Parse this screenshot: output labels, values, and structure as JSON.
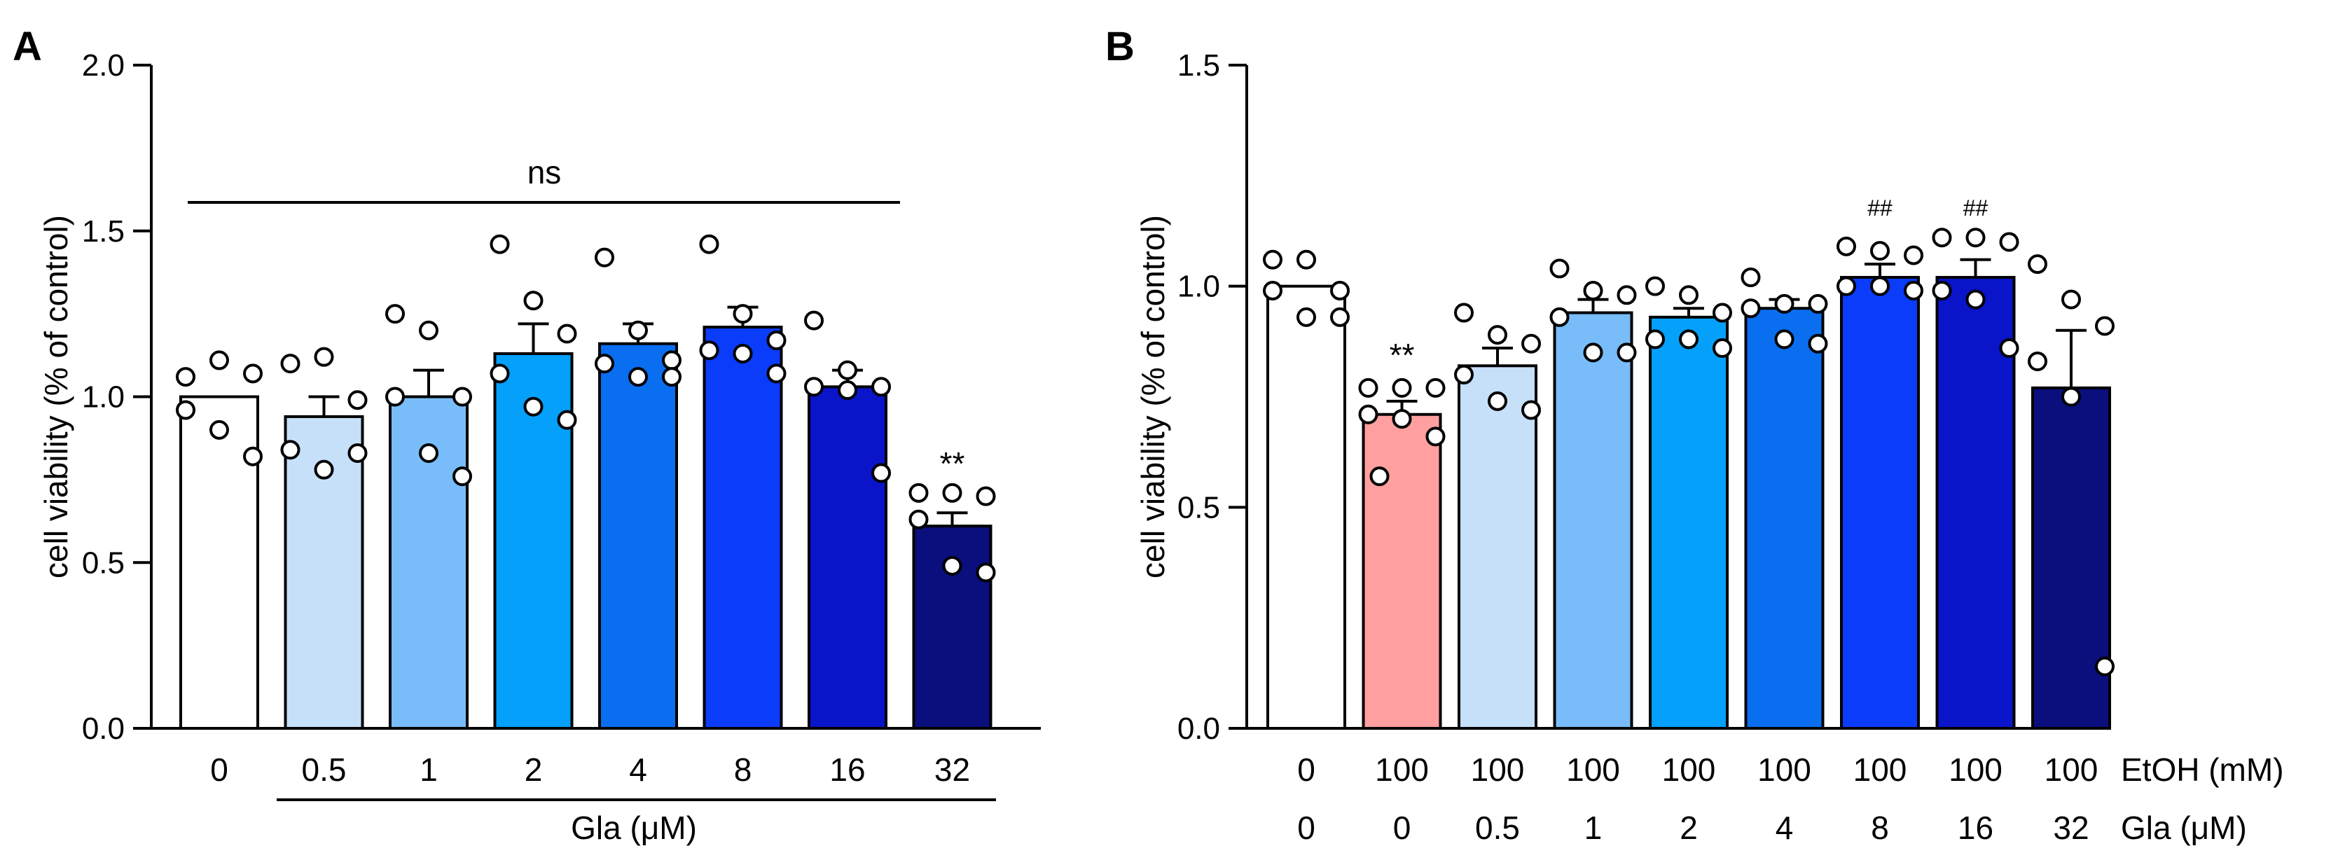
{
  "chart_data": [
    {
      "type": "bar",
      "panel": "A",
      "title": "",
      "ylabel": "cell viability (% of control)",
      "xlabel": "Gla (μM)",
      "ylim": [
        0,
        2.0
      ],
      "yticks": [
        0.0,
        0.5,
        1.0,
        1.5,
        2.0
      ],
      "ytick_labels": [
        "0.0",
        "0.5",
        "1.0",
        "1.5",
        "2.0"
      ],
      "categories": [
        "0",
        "0.5",
        "1",
        "2",
        "4",
        "8",
        "16",
        "32"
      ],
      "values": [
        1.0,
        0.94,
        1.0,
        1.13,
        1.16,
        1.21,
        1.03,
        0.61
      ],
      "errors": [
        0.0,
        0.06,
        0.08,
        0.09,
        0.06,
        0.06,
        0.05,
        0.04
      ],
      "colors": [
        "#ffffff",
        "#c6e0fa",
        "#78bdfa",
        "#05a0fa",
        "#0a6ef0",
        "#0a3cfa",
        "#0a14c8",
        "#0a0f7d"
      ],
      "points": [
        [
          1.06,
          1.11,
          1.07,
          0.96,
          0.9,
          0.82
        ],
        [
          1.1,
          1.12,
          0.99,
          0.84,
          0.78,
          0.83
        ],
        [
          1.25,
          1.2,
          1.0,
          1.0,
          0.83,
          0.76
        ],
        [
          1.46,
          1.29,
          1.19,
          1.07,
          0.97,
          0.93
        ],
        [
          1.42,
          1.2,
          1.11,
          1.1,
          1.06,
          1.06
        ],
        [
          1.46,
          1.25,
          1.17,
          1.14,
          1.13,
          1.07
        ],
        [
          1.23,
          1.08,
          1.03,
          1.03,
          1.02,
          0.77
        ],
        [
          0.71,
          0.71,
          0.7,
          0.63,
          0.49,
          0.47
        ]
      ],
      "annotations": [
        {
          "text": "ns",
          "type": "bracket-over-all"
        },
        {
          "text": "**",
          "category": "32"
        }
      ]
    },
    {
      "type": "bar",
      "panel": "B",
      "title": "",
      "ylabel": "cell viability (% of control)",
      "ylim": [
        0,
        1.5
      ],
      "yticks": [
        0.0,
        0.5,
        1.0,
        1.5
      ],
      "ytick_labels": [
        "0.0",
        "0.5",
        "1.0",
        "1.5"
      ],
      "row_labels": [
        "EtOH (mM)",
        "Gla (μM)"
      ],
      "etoh": [
        "0",
        "100",
        "100",
        "100",
        "100",
        "100",
        "100",
        "100",
        "100"
      ],
      "gla": [
        "0",
        "0",
        "0.5",
        "1",
        "2",
        "4",
        "8",
        "16",
        "32"
      ],
      "values": [
        1.0,
        0.71,
        0.82,
        0.94,
        0.93,
        0.95,
        1.02,
        1.02,
        0.77
      ],
      "errors": [
        0.0,
        0.03,
        0.04,
        0.03,
        0.02,
        0.02,
        0.03,
        0.04,
        0.13
      ],
      "colors": [
        "#ffffff",
        "#ff9f9f",
        "#c6e0fa",
        "#78bdfa",
        "#05a0fa",
        "#0a6ef0",
        "#0a3cfa",
        "#0a14c8",
        "#0a0f7d"
      ],
      "points": [
        [
          1.06,
          1.06,
          0.99,
          0.99,
          0.93,
          0.93
        ],
        [
          0.77,
          0.77,
          0.77,
          0.71,
          0.7,
          0.66,
          0.57
        ],
        [
          0.94,
          0.89,
          0.87,
          0.8,
          0.74,
          0.72
        ],
        [
          1.04,
          0.99,
          0.98,
          0.93,
          0.85,
          0.85
        ],
        [
          1.0,
          0.98,
          0.94,
          0.88,
          0.88,
          0.86
        ],
        [
          1.02,
          0.96,
          0.96,
          0.95,
          0.88,
          0.87
        ],
        [
          1.09,
          1.08,
          1.07,
          1.0,
          1.0,
          0.99
        ],
        [
          1.11,
          1.11,
          1.1,
          0.99,
          0.97,
          0.86
        ],
        [
          1.05,
          0.97,
          0.91,
          0.83,
          0.75,
          0.14
        ]
      ],
      "annotations": [
        {
          "text": "**",
          "index": 1
        },
        {
          "text": "##",
          "index": 6
        },
        {
          "text": "##",
          "index": 7
        }
      ]
    }
  ]
}
